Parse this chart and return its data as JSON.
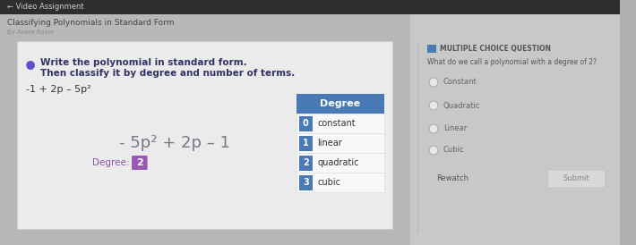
{
  "outer_bg": "#b0b0b0",
  "header_bg": "#2a2a2a",
  "header_text": "← Video Assignment",
  "header_text_color": "#cccccc",
  "top_bar_bg": "#c8c8c8",
  "subtitle": "Classifying Polynomials in Standard Form",
  "author": "By Avem Royer",
  "left_white_box_color": "#f0f0f0",
  "question_line1": "Write the polynomial in standard form.",
  "question_line2": "Then classify it by degree and number of terms.",
  "polynomial_original": "-1 + 2p – 5p²",
  "polynomial_standard_parts": [
    {
      "text": "- 5p",
      "color": "#555566"
    },
    {
      "text": "2",
      "color": "#555566",
      "super": true
    },
    {
      "text": " + 2p – 1",
      "color": "#555566"
    }
  ],
  "polynomial_standard": "- 5p² + 2p – 1",
  "degree_label": "Degree:",
  "degree_value": "2",
  "degree_table_header": "Degree",
  "degree_table_bg": "#4a7ab5",
  "degree_table_text": "#ffffff",
  "degree_rows": [
    {
      "num": "0",
      "label": "constant"
    },
    {
      "num": "1",
      "label": "linear"
    },
    {
      "num": "2",
      "label": "quadratic"
    },
    {
      "num": "3",
      "label": "cubic"
    }
  ],
  "mcq_icon_color": "#4a7ab5",
  "mcq_label": "MULTIPLE CHOICE QUESTION",
  "mcq_question": "What do we call a polynomial with a degree of 2?",
  "mcq_choices": [
    "Constant",
    "Quadratic",
    "Linear",
    "Cubic"
  ],
  "rewatch_label": "Rewatch",
  "submit_label": "Submit",
  "bullet_color": "#5b4fcf",
  "question_color": "#333366",
  "poly_original_color": "#333333",
  "poly_standard_color": "#777788",
  "degree_label_color": "#8855aa",
  "degree_badge_bg": "#9b59b6",
  "degree_badge_text": "#ffffff",
  "mcq_question_color": "#555555",
  "mcq_choice_color": "#666666",
  "divider_color": "#bbbbbb",
  "radio_face": "#e8e8e8",
  "radio_edge": "#aaaaaa",
  "submit_bg": "#d8d8d8",
  "rewatch_color": "#555555",
  "left_panel_bg": "#c0c0c0",
  "right_panel_bg": "#e0e0e0",
  "white_box_bg": "#efefef"
}
